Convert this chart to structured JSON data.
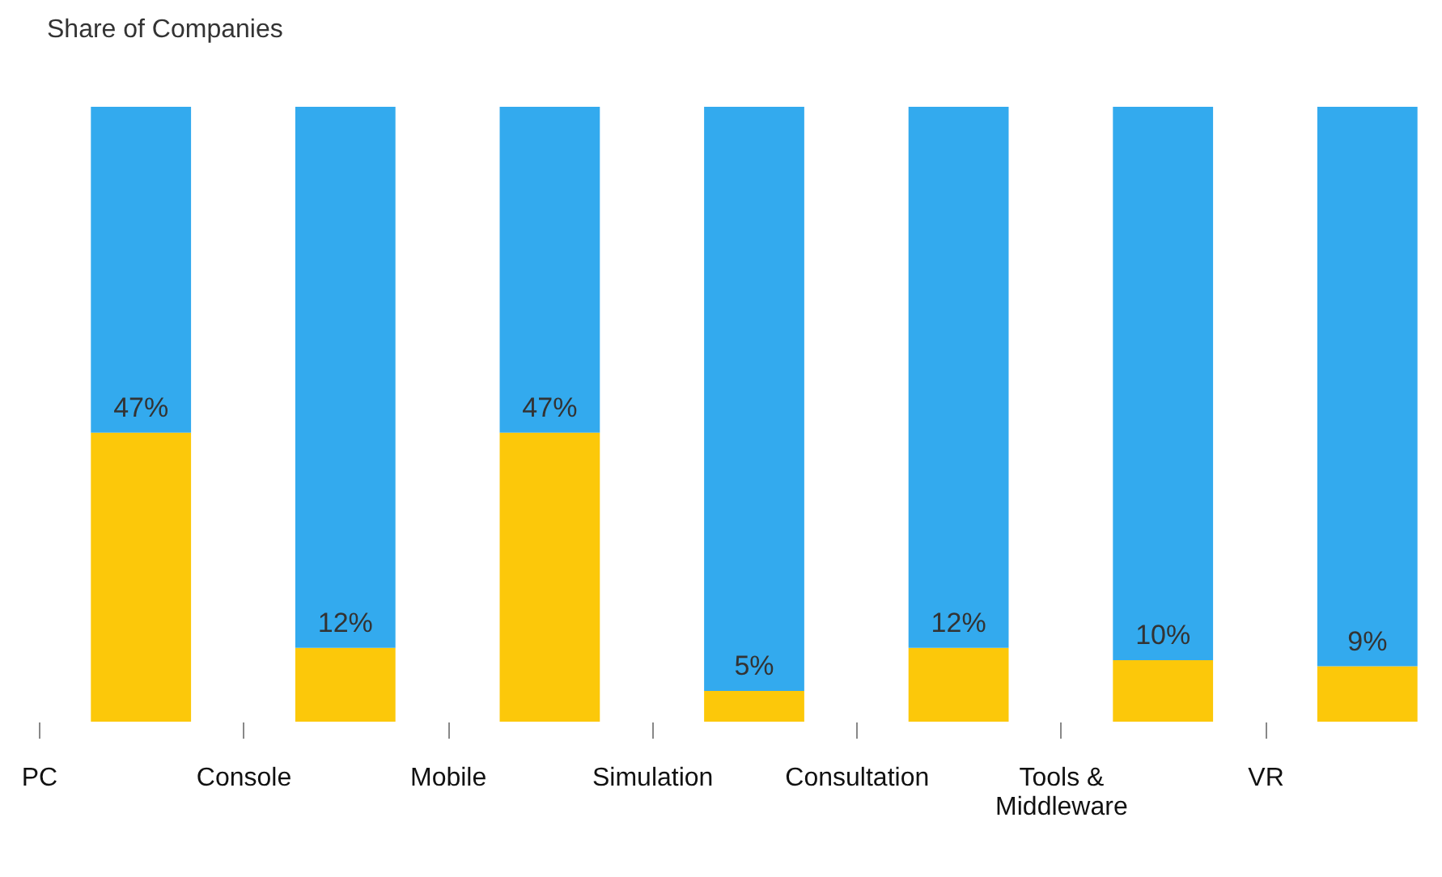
{
  "chart_data": {
    "type": "bar",
    "title": "Share of Companies",
    "stacked": true,
    "categories": [
      "PC",
      "Console",
      "Mobile",
      "Simulation",
      "Consultation",
      "Tools & Middleware",
      "VR"
    ],
    "series": [
      {
        "color": "#fcc80a",
        "values": [
          47,
          12,
          47,
          5,
          12,
          10,
          9
        ],
        "value_labels": [
          "47%",
          "12%",
          "47%",
          "5%",
          "12%",
          "10%",
          "9%"
        ]
      },
      {
        "color": "#33aaee",
        "values": [
          53,
          88,
          53,
          95,
          88,
          90,
          91
        ]
      }
    ],
    "ylim": [
      0,
      100
    ],
    "tick_labels": "x"
  }
}
